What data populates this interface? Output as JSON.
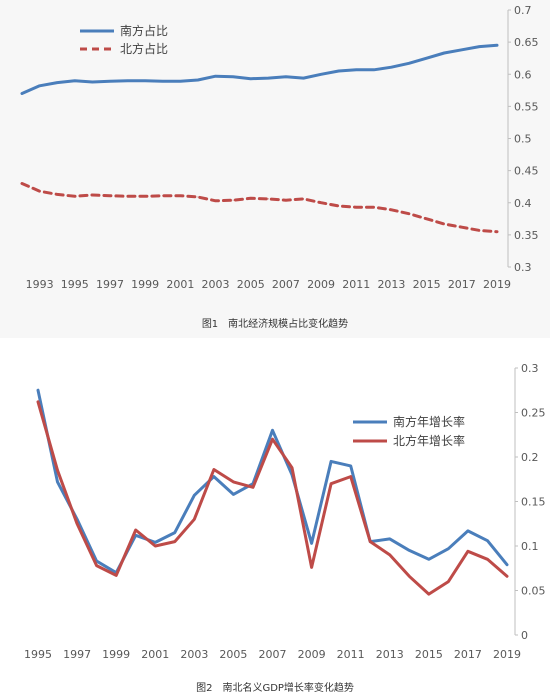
{
  "chart_data": [
    {
      "type": "line",
      "caption": "图1　南北经济规模占比变化趋势",
      "x": [
        1992,
        1993,
        1994,
        1995,
        1996,
        1997,
        1998,
        1999,
        2000,
        2001,
        2002,
        2003,
        2004,
        2005,
        2006,
        2007,
        2008,
        2009,
        2010,
        2011,
        2012,
        2013,
        2014,
        2015,
        2016,
        2017,
        2018,
        2019
      ],
      "x_tick_labels": [
        "1993",
        "1995",
        "1997",
        "1999",
        "2001",
        "2003",
        "2005",
        "2007",
        "2009",
        "2011",
        "2013",
        "2015",
        "2017",
        "2019"
      ],
      "y_axis_side": "right",
      "ylim": [
        0.3,
        0.7
      ],
      "y_ticks": [
        "0.3",
        "0.35",
        "0.4",
        "0.45",
        "0.5",
        "0.55",
        "0.6",
        "0.65",
        "0.7"
      ],
      "legend_position": "top-left",
      "series": [
        {
          "name": "南方占比",
          "color": "#4a7ebb",
          "style": "solid",
          "values": [
            0.57,
            0.582,
            0.587,
            0.59,
            0.588,
            0.589,
            0.59,
            0.59,
            0.589,
            0.589,
            0.591,
            0.597,
            0.596,
            0.593,
            0.594,
            0.596,
            0.594,
            0.6,
            0.605,
            0.607,
            0.607,
            0.611,
            0.617,
            0.625,
            0.633,
            0.638,
            0.643,
            0.645
          ]
        },
        {
          "name": "北方占比",
          "color": "#be4b48",
          "style": "dashed",
          "values": [
            0.43,
            0.418,
            0.413,
            0.41,
            0.412,
            0.411,
            0.41,
            0.41,
            0.411,
            0.411,
            0.409,
            0.403,
            0.404,
            0.407,
            0.406,
            0.404,
            0.406,
            0.4,
            0.395,
            0.393,
            0.393,
            0.389,
            0.383,
            0.375,
            0.367,
            0.362,
            0.357,
            0.355
          ]
        }
      ]
    },
    {
      "type": "line",
      "caption": "图2　南北名义GDP增长率变化趋势",
      "x": [
        1995,
        1996,
        1997,
        1998,
        1999,
        2000,
        2001,
        2002,
        2003,
        2004,
        2005,
        2006,
        2007,
        2008,
        2009,
        2010,
        2011,
        2012,
        2013,
        2014,
        2015,
        2016,
        2017,
        2018,
        2019
      ],
      "x_tick_labels": [
        "1995",
        "1997",
        "1999",
        "2001",
        "2003",
        "2005",
        "2007",
        "2009",
        "2011",
        "2013",
        "2015",
        "2017",
        "2019"
      ],
      "y_axis_side": "right",
      "ylim": [
        0,
        0.3
      ],
      "y_ticks": [
        "0",
        "0.05",
        "0.1",
        "0.15",
        "0.2",
        "0.25",
        "0.3"
      ],
      "legend_position": "top-right",
      "series": [
        {
          "name": "南方年增长率",
          "color": "#4a7ebb",
          "style": "solid",
          "values": [
            0.275,
            0.172,
            0.13,
            0.083,
            0.07,
            0.112,
            0.104,
            0.115,
            0.157,
            0.178,
            0.158,
            0.17,
            0.23,
            0.18,
            0.103,
            0.195,
            0.19,
            0.105,
            0.108,
            0.095,
            0.085,
            0.097,
            0.117,
            0.106,
            0.079
          ]
        },
        {
          "name": "北方年增长率",
          "color": "#be4b48",
          "style": "solid",
          "values": [
            0.262,
            0.185,
            0.125,
            0.078,
            0.067,
            0.118,
            0.1,
            0.105,
            0.13,
            0.186,
            0.172,
            0.166,
            0.22,
            0.188,
            0.076,
            0.17,
            0.178,
            0.105,
            0.09,
            0.066,
            0.046,
            0.06,
            0.094,
            0.085,
            0.066
          ]
        }
      ]
    }
  ]
}
